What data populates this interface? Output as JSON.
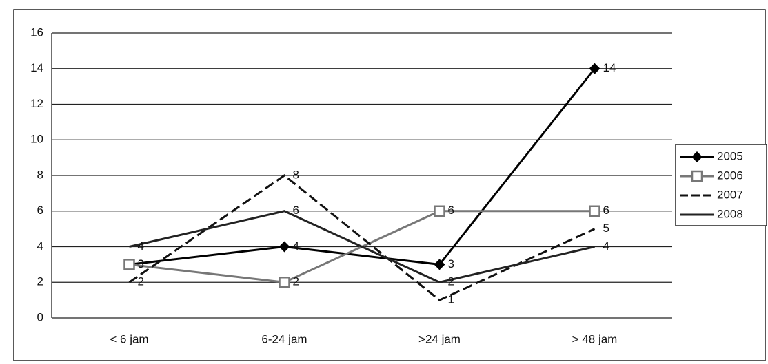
{
  "chart_data": {
    "type": "line",
    "categories": [
      "< 6 jam",
      "6-24 jam",
      ">24 jam",
      "> 48 jam"
    ],
    "series": [
      {
        "name": "2005",
        "color": "#000000",
        "marker": "diamond",
        "dash": false,
        "values": [
          3,
          4,
          3,
          14
        ]
      },
      {
        "name": "2006",
        "color": "#777777",
        "marker": "square",
        "dash": false,
        "values": [
          3,
          2,
          6,
          6
        ]
      },
      {
        "name": "2007",
        "color": "#111111",
        "marker": "none",
        "dash": true,
        "values": [
          2,
          8,
          1,
          5
        ]
      },
      {
        "name": "2008",
        "color": "#222222",
        "marker": "none",
        "dash": false,
        "values": [
          4,
          6,
          2,
          4
        ]
      }
    ],
    "ylim": [
      0,
      16
    ],
    "yticks": [
      0,
      2,
      4,
      6,
      8,
      10,
      12,
      14,
      16
    ],
    "grid": true,
    "legend": "right"
  }
}
